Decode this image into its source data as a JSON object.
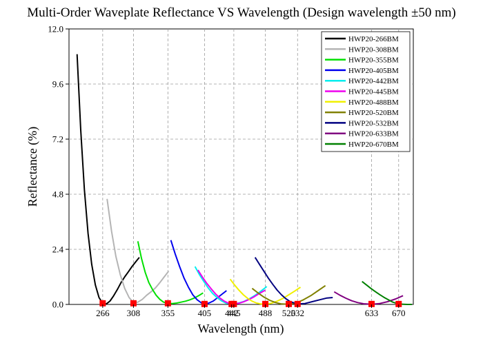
{
  "chart_data": {
    "type": "line",
    "title": "Multi-Order Waveplate Reflectance VS Wavelength (Design wavelength ±50 nm)",
    "xlabel": "Wavelength (nm)",
    "ylabel": "Reflectance (%)",
    "ylim": [
      0,
      12
    ],
    "xlim": [
      220,
      690
    ],
    "y_ticks": [
      "0.0",
      "2.4",
      "4.8",
      "7.2",
      "9.6",
      "12.0"
    ],
    "y_tick_values": [
      0,
      2.4,
      4.8,
      7.2,
      9.6,
      12.0
    ],
    "x_ticks": [
      "266",
      "308",
      "355",
      "405",
      "442",
      "445",
      "488",
      "520",
      "532",
      "633",
      "670"
    ],
    "x_tick_values": [
      266,
      308,
      355,
      405,
      442,
      445,
      488,
      520,
      532,
      633,
      670
    ],
    "x_grid_values": [
      266,
      308,
      355,
      405,
      445,
      488,
      532,
      633,
      670
    ],
    "grid": true,
    "legend_position": "top-right",
    "series": [
      {
        "name": "HWP20-266BM",
        "color": "#000000",
        "x": [
          231,
          236,
          241,
          246,
          251,
          256,
          261,
          266,
          271,
          276,
          281,
          286,
          291,
          296,
          301,
          306,
          311,
          316
        ],
        "y": [
          10.9,
          7.6,
          5.0,
          3.1,
          1.75,
          0.85,
          0.3,
          0.05,
          0.02,
          0.15,
          0.38,
          0.65,
          0.95,
          1.2,
          1.42,
          1.65,
          1.85,
          2.05
        ]
      },
      {
        "name": "HWP20-308BM",
        "color": "#b4b4b4",
        "x": [
          272,
          278,
          284,
          290,
          296,
          302,
          308,
          314,
          320,
          326,
          332,
          338,
          344,
          350,
          356
        ],
        "y": [
          4.6,
          3.2,
          2.1,
          1.3,
          0.7,
          0.3,
          0.08,
          0.1,
          0.22,
          0.4,
          0.55,
          0.72,
          0.95,
          1.2,
          1.45
        ]
      },
      {
        "name": "HWP20-355BM",
        "color": "#00e000",
        "x": [
          314,
          319,
          324,
          329,
          334,
          339,
          344,
          349,
          355,
          361,
          367,
          373,
          379,
          385,
          391,
          397,
          403
        ],
        "y": [
          2.75,
          2.0,
          1.4,
          0.95,
          0.65,
          0.4,
          0.22,
          0.1,
          0.05,
          0.04,
          0.06,
          0.1,
          0.14,
          0.2,
          0.28,
          0.38,
          0.5
        ]
      },
      {
        "name": "HWP20-405BM",
        "color": "#0000ee",
        "x": [
          359,
          365,
          371,
          377,
          383,
          389,
          395,
          401,
          405,
          411,
          417,
          423,
          429,
          435
        ],
        "y": [
          2.8,
          2.2,
          1.65,
          1.15,
          0.75,
          0.42,
          0.2,
          0.06,
          0.02,
          0.06,
          0.15,
          0.3,
          0.45,
          0.6
        ]
      },
      {
        "name": "HWP20-442BM",
        "color": "#00eeee",
        "x": [
          392,
          398,
          404,
          410,
          416,
          422,
          428,
          434,
          442,
          450,
          458,
          466,
          474,
          482,
          490
        ],
        "y": [
          1.65,
          1.3,
          1.0,
          0.72,
          0.48,
          0.3,
          0.16,
          0.06,
          0.02,
          0.05,
          0.12,
          0.24,
          0.4,
          0.58,
          0.78
        ]
      },
      {
        "name": "HWP20-445BM",
        "color": "#ee00ee",
        "x": [
          396,
          402,
          408,
          414,
          420,
          426,
          432,
          438,
          445,
          452,
          459,
          466,
          473,
          480,
          488
        ],
        "y": [
          1.5,
          1.2,
          0.92,
          0.68,
          0.46,
          0.28,
          0.14,
          0.05,
          0.02,
          0.05,
          0.12,
          0.22,
          0.34,
          0.48,
          0.62
        ]
      },
      {
        "name": "HWP20-488BM",
        "color": "#f0f000",
        "x": [
          440,
          446,
          452,
          458,
          464,
          470,
          476,
          482,
          488,
          496,
          504,
          512,
          520,
          528,
          536
        ],
        "y": [
          1.1,
          0.85,
          0.62,
          0.42,
          0.26,
          0.14,
          0.06,
          0.02,
          0.01,
          0.05,
          0.14,
          0.26,
          0.42,
          0.58,
          0.75
        ]
      },
      {
        "name": "HWP20-520BM",
        "color": "#808000",
        "x": [
          470,
          478,
          486,
          494,
          502,
          510,
          520,
          530,
          540,
          550,
          560,
          570
        ],
        "y": [
          0.7,
          0.5,
          0.32,
          0.18,
          0.08,
          0.02,
          0.01,
          0.06,
          0.2,
          0.38,
          0.6,
          0.82
        ]
      },
      {
        "name": "HWP20-532BM",
        "color": "#000080",
        "x": [
          474,
          480,
          486,
          492,
          498,
          504,
          510,
          516,
          522,
          532,
          542,
          552,
          562,
          572,
          580
        ],
        "y": [
          2.05,
          1.75,
          1.45,
          1.15,
          0.88,
          0.63,
          0.42,
          0.25,
          0.12,
          0.02,
          0.04,
          0.12,
          0.2,
          0.28,
          0.3
        ]
      },
      {
        "name": "HWP20-633BM",
        "color": "#800080",
        "x": [
          582,
          590,
          598,
          606,
          614,
          622,
          633,
          644,
          655,
          666,
          676
        ],
        "y": [
          0.55,
          0.4,
          0.27,
          0.16,
          0.08,
          0.03,
          0.01,
          0.04,
          0.12,
          0.24,
          0.38
        ]
      },
      {
        "name": "HWP20-670BM",
        "color": "#008000",
        "x": [
          620,
          626,
          632,
          638,
          644,
          650,
          656,
          662,
          670,
          676,
          682,
          688
        ],
        "y": [
          1.0,
          0.85,
          0.7,
          0.56,
          0.43,
          0.31,
          0.2,
          0.1,
          0.02,
          0.01,
          0.0,
          0.0
        ]
      }
    ],
    "markers": {
      "color": "#ff0000",
      "points": [
        {
          "x": 266,
          "y": 0.05
        },
        {
          "x": 308,
          "y": 0.05
        },
        {
          "x": 355,
          "y": 0.05
        },
        {
          "x": 405,
          "y": 0.02
        },
        {
          "x": 442,
          "y": 0.02
        },
        {
          "x": 445,
          "y": 0.02
        },
        {
          "x": 488,
          "y": 0.02
        },
        {
          "x": 520,
          "y": 0.02
        },
        {
          "x": 532,
          "y": 0.02
        },
        {
          "x": 633,
          "y": 0.02
        },
        {
          "x": 670,
          "y": 0.02
        }
      ]
    }
  }
}
